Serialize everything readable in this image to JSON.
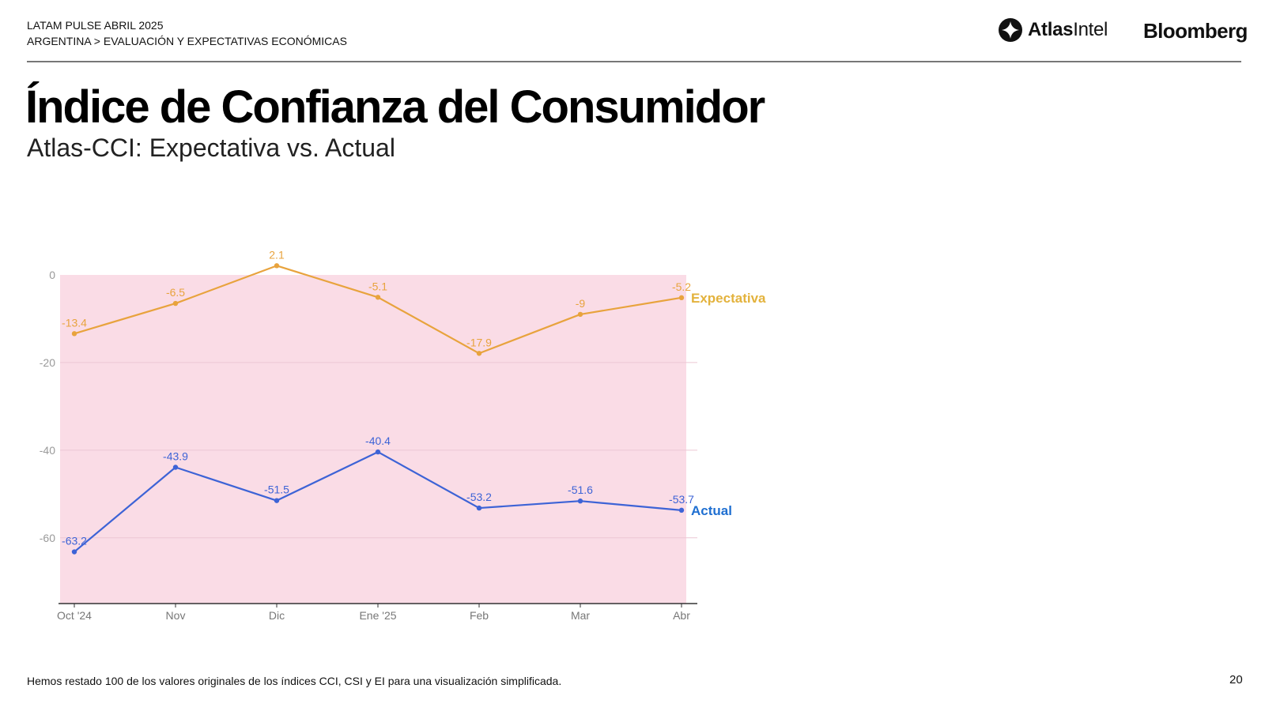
{
  "header": {
    "line1": "LATAM PULSE ABRIL 2025",
    "line2": "ARGENTINA > EVALUACIÓN Y EXPECTATIVAS ECONÓMICAS"
  },
  "logos": {
    "atlas_bold": "Atlas",
    "atlas_light": "Intel",
    "bloomberg": "Bloomberg"
  },
  "title": "Índice de Confianza del Consumidor",
  "subtitle": "Atlas-CCI: Expectativa vs. Actual",
  "footnote": "Hemos restado 100 de los valores originales de los índices CCI, CSI y EI para una visualización simplificada.",
  "page_number": "20",
  "colors": {
    "expectativa": "#E8A33D",
    "expectativa_label": "#E3B23C",
    "actual": "#3D63D6",
    "actual_label": "#1F6FD1",
    "plot_bg": "#FADCE6",
    "grid": "#ECC7D4",
    "axis": "#333333",
    "tick_text": "#999999"
  },
  "chart_data": {
    "type": "line",
    "categories": [
      "Oct '24",
      "Nov",
      "Dic",
      "Ene '25",
      "Feb",
      "Mar",
      "Abr"
    ],
    "series": [
      {
        "name": "Expectativa",
        "values": [
          -13.4,
          -6.5,
          2.1,
          -5.1,
          -17.9,
          -9,
          -5.2
        ],
        "labels": [
          "-13.4",
          "-6.5",
          "2.1",
          "-5.1",
          "-17.9",
          "-9",
          "-5.2"
        ]
      },
      {
        "name": "Actual",
        "values": [
          -63.2,
          -43.9,
          -51.5,
          -40.4,
          -53.2,
          -51.6,
          -53.7
        ],
        "labels": [
          "-63.2",
          "-43.9",
          "-51.5",
          "-40.4",
          "-53.2",
          "-51.6",
          "-53.7"
        ]
      }
    ],
    "yticks": [
      "0",
      "-20",
      "-40",
      "-60"
    ],
    "ylim": [
      -75,
      0
    ],
    "grid": true,
    "legend": "inline at line ends"
  }
}
